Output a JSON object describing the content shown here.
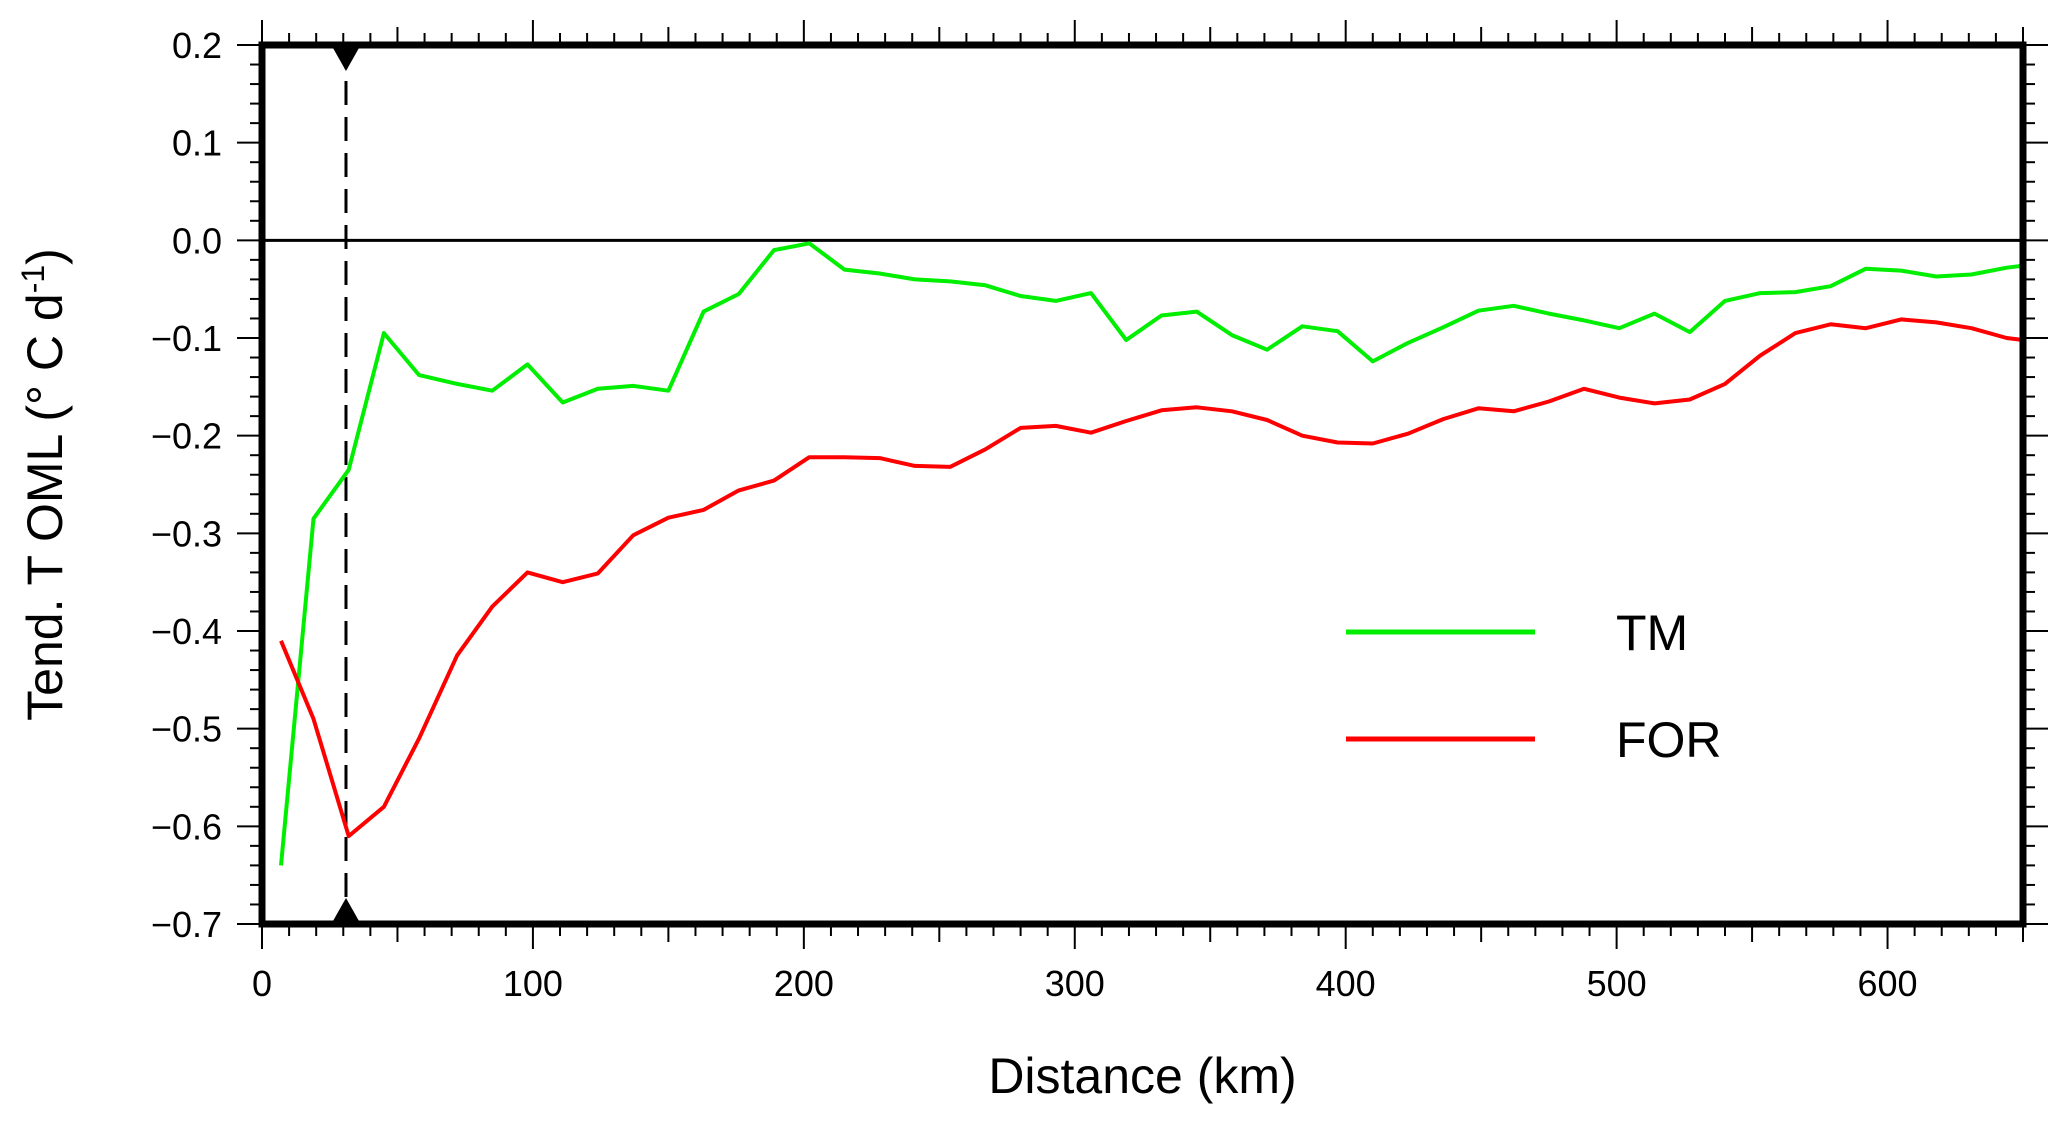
{
  "chart_data": {
    "type": "line",
    "title": "",
    "xlabel": "Distance (km)",
    "ylabel": {
      "main": "Tend. T OML (",
      "unit": "° C d",
      "exponent": "-1",
      "close": ")"
    },
    "xlim": [
      0,
      650
    ],
    "ylim": [
      -0.7,
      0.2
    ],
    "x_ticks": [
      0,
      100,
      200,
      300,
      400,
      500,
      600
    ],
    "x_tick_labels": [
      "0",
      "100",
      "200",
      "300",
      "400",
      "500",
      "600"
    ],
    "y_ticks": [
      0.2,
      0.1,
      0.0,
      -0.1,
      -0.2,
      -0.3,
      -0.4,
      -0.5,
      -0.6,
      -0.7
    ],
    "y_tick_labels": [
      "0.2",
      "0.1",
      "0.0",
      "−0.1",
      "−0.2",
      "−0.3",
      "−0.4",
      "−0.5",
      "−0.6",
      "−0.7"
    ],
    "grid": false,
    "reference_line_y": 0,
    "vertical_marker_x": 31,
    "legend_position": "lower-right",
    "series": [
      {
        "name": "TM",
        "color": "#00ee00",
        "x": [
          7,
          19,
          32,
          45,
          58,
          72,
          85,
          98,
          111,
          124,
          137,
          150,
          163,
          176,
          189,
          202,
          215,
          228,
          241,
          254,
          267,
          280,
          293,
          306,
          319,
          332,
          345,
          358,
          371,
          384,
          397,
          410,
          423,
          436,
          449,
          462,
          475,
          488,
          501,
          514,
          527,
          540,
          553,
          566,
          579,
          592,
          605,
          618,
          631,
          644,
          650
        ],
        "y": [
          -0.64,
          -0.285,
          -0.235,
          -0.095,
          -0.138,
          -0.147,
          -0.154,
          -0.127,
          -0.166,
          -0.152,
          -0.149,
          -0.154,
          -0.073,
          -0.055,
          -0.01,
          -0.003,
          -0.03,
          -0.034,
          -0.04,
          -0.042,
          -0.046,
          -0.057,
          -0.062,
          -0.054,
          -0.102,
          -0.077,
          -0.073,
          -0.097,
          -0.112,
          -0.088,
          -0.093,
          -0.124,
          -0.105,
          -0.089,
          -0.072,
          -0.067,
          -0.075,
          -0.082,
          -0.09,
          -0.075,
          -0.094,
          -0.062,
          -0.054,
          -0.053,
          -0.047,
          -0.029,
          -0.031,
          -0.037,
          -0.035,
          -0.028,
          -0.026
        ]
      },
      {
        "name": "FOR",
        "color": "#ff0000",
        "x": [
          7,
          19,
          32,
          45,
          58,
          72,
          85,
          98,
          111,
          124,
          137,
          150,
          163,
          176,
          189,
          202,
          215,
          228,
          241,
          254,
          267,
          280,
          293,
          306,
          319,
          332,
          345,
          358,
          371,
          384,
          397,
          410,
          423,
          436,
          449,
          462,
          475,
          488,
          501,
          514,
          527,
          540,
          553,
          566,
          579,
          592,
          605,
          618,
          631,
          644,
          650
        ],
        "y": [
          -0.41,
          -0.49,
          -0.61,
          -0.58,
          -0.51,
          -0.425,
          -0.375,
          -0.34,
          -0.35,
          -0.341,
          -0.302,
          -0.284,
          -0.276,
          -0.256,
          -0.246,
          -0.222,
          -0.222,
          -0.223,
          -0.231,
          -0.232,
          -0.214,
          -0.192,
          -0.19,
          -0.197,
          -0.185,
          -0.174,
          -0.171,
          -0.175,
          -0.184,
          -0.2,
          -0.207,
          -0.208,
          -0.198,
          -0.183,
          -0.172,
          -0.175,
          -0.165,
          -0.152,
          -0.161,
          -0.167,
          -0.163,
          -0.147,
          -0.118,
          -0.095,
          -0.086,
          -0.09,
          -0.081,
          -0.084,
          -0.09,
          -0.1,
          -0.102
        ]
      }
    ]
  }
}
